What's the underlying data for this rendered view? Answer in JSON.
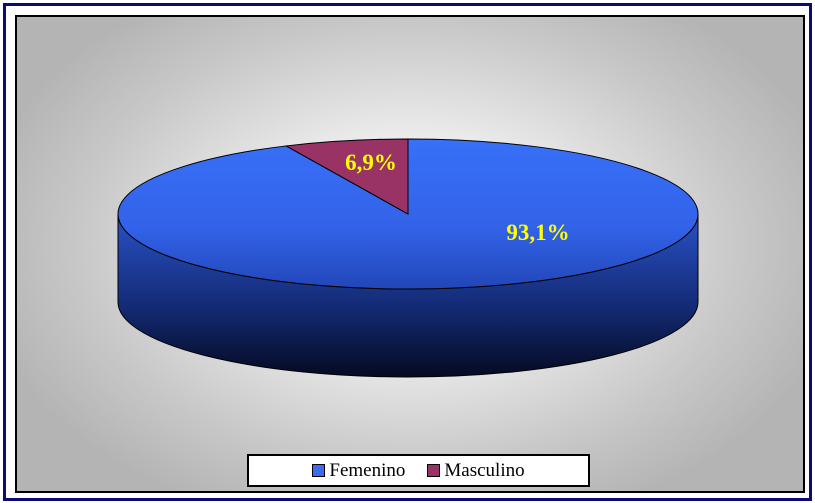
{
  "chart_data": {
    "type": "pie",
    "style": "3d",
    "title": "",
    "legend_position": "bottom",
    "slices": [
      {
        "label": "Femenino",
        "value": 93.1,
        "display": "93,1%",
        "color": "#3a6cf0"
      },
      {
        "label": "Masculino",
        "value": 6.9,
        "display": "6,9%",
        "color": "#993366"
      }
    ]
  }
}
